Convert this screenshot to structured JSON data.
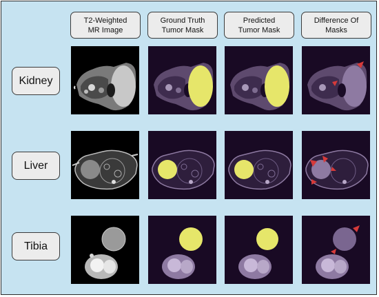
{
  "columns": [
    {
      "line1": "T2-Weighted",
      "line2": "MR Image"
    },
    {
      "line1": "Ground Truth",
      "line2": "Tumor Mask"
    },
    {
      "line1": "Predicted",
      "line2": "Tumor Mask"
    },
    {
      "line1": "Difference Of",
      "line2": "Masks"
    }
  ],
  "rows": [
    {
      "label": "Kidney"
    },
    {
      "label": "Liver"
    },
    {
      "label": "Tibia"
    }
  ],
  "colors": {
    "panel_background": "#c6e3f1",
    "mask_yellow": "#e6e66a",
    "overlay_purple": "#2a1238",
    "arrow_red": "#d63a3a"
  }
}
